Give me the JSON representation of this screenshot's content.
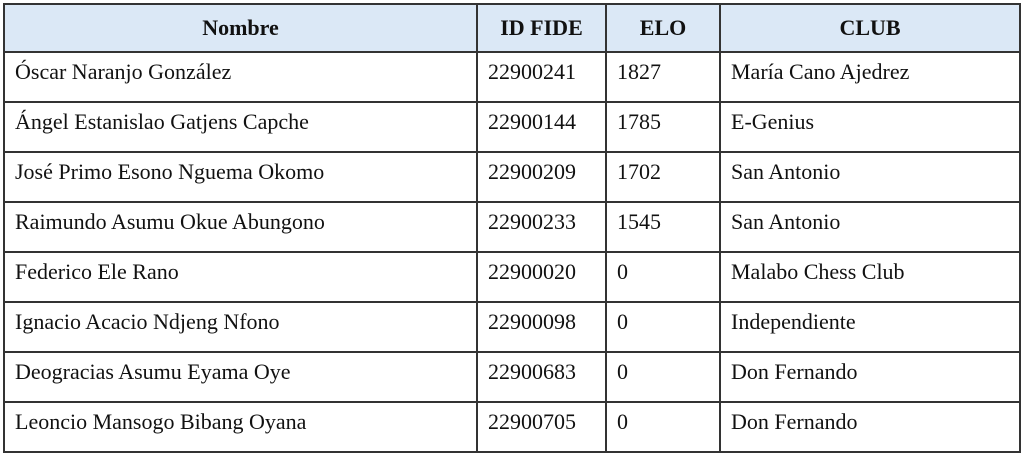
{
  "table": {
    "headers": [
      "Nombre",
      "ID FIDE",
      "ELO",
      "CLUB"
    ],
    "header_bg": "#dbe8f6",
    "rows": [
      [
        "Óscar Naranjo González",
        "22900241",
        "1827",
        "María Cano Ajedrez"
      ],
      [
        "Ángel Estanislao Gatjens Capche",
        "22900144",
        "1785",
        "E-Genius"
      ],
      [
        "José Primo Esono Nguema Okomo",
        "22900209",
        "1702",
        "San Antonio"
      ],
      [
        "Raimundo Asumu Okue Abungono",
        "22900233",
        "1545",
        "San Antonio"
      ],
      [
        "Federico Ele Rano",
        "22900020",
        "0",
        "Malabo Chess Club"
      ],
      [
        "Ignacio Acacio Ndjeng Nfono",
        "22900098",
        "0",
        "Independiente"
      ],
      [
        "Deogracias Asumu Eyama Oye",
        "22900683",
        "0",
        "Don Fernando"
      ],
      [
        "Leoncio Mansogo Bibang Oyana",
        "22900705",
        "0",
        "Don Fernando"
      ]
    ]
  }
}
